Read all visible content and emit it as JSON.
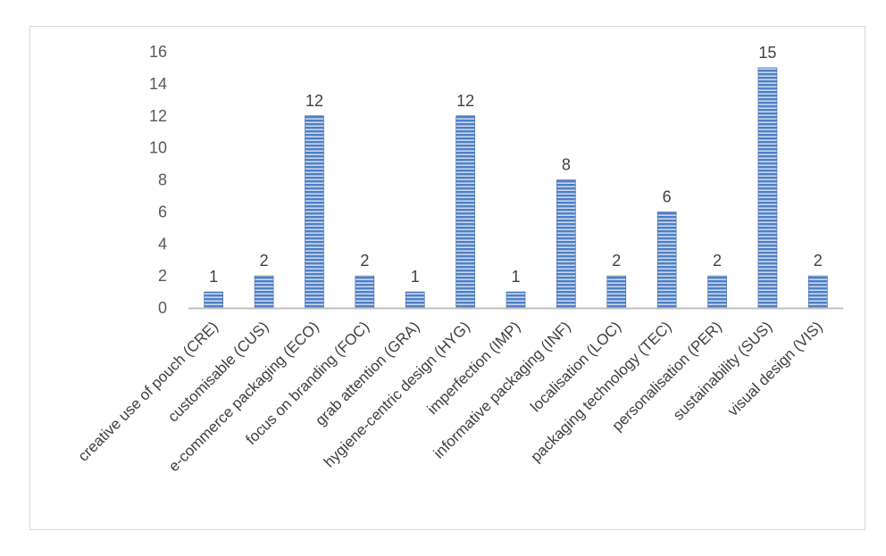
{
  "chart_data": {
    "type": "bar",
    "title": "",
    "xlabel": "",
    "ylabel": "",
    "categories": [
      "creative use of pouch (CRE)",
      "customisable (CUS)",
      "e-commerce packaging (ECO)",
      "focus on branding (FOC)",
      "grab attention (GRA)",
      "hygiene-centric design (HYG)",
      "imperfection (IMP)",
      "informative packaging (INF)",
      "localisation (LOC)",
      "packaging technology (TEC)",
      "personalisation (PER)",
      "sustainability (SUS)",
      "visual design (VIS)"
    ],
    "values": [
      1,
      2,
      12,
      2,
      1,
      12,
      1,
      8,
      2,
      6,
      2,
      15,
      2
    ],
    "data_labels": [
      "1",
      "2",
      "12",
      "2",
      "1",
      "12",
      "1",
      "8",
      "2",
      "6",
      "2",
      "15",
      "2"
    ],
    "ylim": [
      0,
      16
    ],
    "yticks": [
      "0",
      "2",
      "4",
      "6",
      "8",
      "10",
      "12",
      "14",
      "16"
    ],
    "grid": false,
    "legend": "none",
    "colors": {
      "bar_fill": "#4f7fc4",
      "bar_stripe": "#c9d8ef",
      "bar_edge": "#3b64a8",
      "axis": "#bfbfbf",
      "text": "#404040"
    }
  }
}
